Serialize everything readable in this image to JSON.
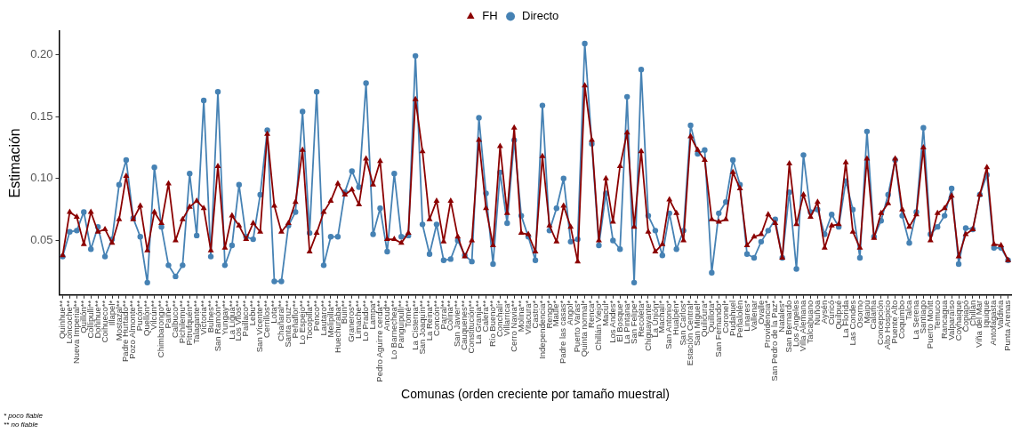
{
  "chart_data": {
    "type": "line",
    "xlabel": "Comunas (orden creciente por tamaño muestral)",
    "ylabel": "Estimación",
    "categories": [
      "Quinhue**",
      "Loncoche**",
      "Nueva Imperial**",
      "Quillón**",
      "Collipulli**",
      "Doñihue**",
      "Coihueco**",
      "Illapel*",
      "Mostazal**",
      "Padre Hurtado**",
      "Pozo Almonte**",
      "Pucón**",
      "Quellón**",
      "Vilcún**",
      "Chimbarongo**",
      "Paine**",
      "Calbuco**",
      "Pichilemu**",
      "Pitrufquén**",
      "Talagante**",
      "Victoria**",
      "Bulnes**",
      "San Ramón**",
      "Yungay**",
      "La Ligua**",
      "Los Vilos**",
      "Paillaco**",
      "Lebu**",
      "San Vicente**",
      "Cerrillos**",
      "Lota**",
      "Chañaral**",
      "Santa cruz**",
      "Peñaflor**",
      "Lo Espejo**",
      "Tocopilla**",
      "Penco**",
      "Lautaro**",
      "Melipilla**",
      "Huechuraba**",
      "Buin**",
      "Graneros**",
      "Limache**",
      "Lo Prado**",
      "Lampa*",
      "Pedro Aguirre cerda**",
      "Ancud**",
      "Lo Barnechea**",
      "Panguipulli**",
      "Tomé**",
      "La Cisterna**",
      "San Joaquín**",
      "La Reina**",
      "Concón**",
      "Parral**",
      "Colina**",
      "San Javier**",
      "Cauquenes**",
      "Constitución**",
      "La Granja**",
      "Calera**",
      "Río Bueno**",
      "Conchalí*",
      "Villarrica*",
      "Cerro Navia**",
      "Molina**",
      "Vitacura*",
      "Castro*",
      "Independencia*",
      "Rengo*",
      "Maule*",
      "Padre las casas*",
      "Angol*",
      "Puerto Varas*",
      "Quinta normal*",
      "Renca*",
      "Chillán Viejo*",
      "Macul*",
      "Los Andes*",
      "El Bosque*",
      "La Pintana*",
      "San Felipe*",
      "Recoleta*",
      "Chiguayante*",
      "La Unión*",
      "Machalí*",
      "San Antonio*",
      "Hualpén*",
      "San Carlos*",
      "Estación Central*",
      "San Miguel*",
      "Quilicura*",
      "Quillota*",
      "San Fernando*",
      "Coronel*",
      "Pudahuel",
      "Peñalolén",
      "Linares*",
      "Vallenar",
      "Ovalle",
      "Providencia*",
      "San Pedro de la Paz*",
      "Natales*",
      "San Bernardo",
      "Los Ángeles",
      "Villa Alemana",
      "Talcahuano",
      "Ñuñoa",
      "Aysén",
      "Curicó",
      "Quilpué",
      "La Florida",
      "Las Condes",
      "Osorno",
      "Maipú",
      "Calama",
      "Concepción",
      "Alto Hospicio",
      "Puente Alto",
      "Coquimbo",
      "Talca",
      "La Serena",
      "Santiago",
      "Puerto Montt",
      "Temuco",
      "Rancagua",
      "Valparaíso",
      "Coyhaique",
      "Copiapó",
      "Chillán",
      "Viña del Mar",
      "Iquique",
      "Antofagasta",
      "Valdivia",
      "Punta Arenas"
    ],
    "series": [
      {
        "name": "Directo",
        "color": "#4682b4",
        "marker": "circle",
        "values": [
          0.037,
          0.057,
          0.058,
          0.073,
          0.043,
          0.061,
          0.037,
          0.051,
          0.095,
          0.115,
          0.068,
          0.053,
          0.016,
          0.109,
          0.061,
          0.03,
          0.021,
          0.03,
          0.104,
          0.054,
          0.163,
          0.037,
          0.17,
          0.03,
          0.046,
          0.095,
          0.053,
          0.051,
          0.087,
          0.139,
          0.017,
          0.017,
          0.062,
          0.073,
          0.154,
          0.056,
          0.17,
          0.03,
          0.053,
          0.053,
          0.089,
          0.106,
          0.093,
          0.177,
          0.055,
          0.076,
          0.041,
          0.104,
          0.053,
          0.054,
          0.199,
          0.063,
          0.039,
          0.063,
          0.034,
          0.035,
          0.05,
          0.038,
          0.033,
          0.149,
          0.088,
          0.031,
          0.105,
          0.064,
          0.131,
          0.07,
          0.053,
          0.034,
          0.159,
          0.058,
          0.076,
          0.1,
          0.049,
          0.051,
          0.209,
          0.128,
          0.046,
          0.088,
          0.05,
          0.043,
          0.166,
          0.016,
          0.188,
          0.07,
          0.058,
          0.038,
          0.072,
          0.043,
          0.058,
          0.143,
          0.12,
          0.123,
          0.024,
          0.072,
          0.081,
          0.115,
          0.095,
          0.039,
          0.036,
          0.049,
          0.058,
          0.067,
          0.036,
          0.089,
          0.027,
          0.119,
          0.073,
          0.075,
          0.055,
          0.071,
          0.061,
          0.098,
          0.075,
          0.036,
          0.138,
          0.053,
          0.066,
          0.087,
          0.115,
          0.07,
          0.048,
          0.073,
          0.141,
          0.055,
          0.061,
          0.07,
          0.092,
          0.031,
          0.06,
          0.059,
          0.087,
          0.103,
          0.044,
          0.044,
          0.034
        ]
      },
      {
        "name": "FH",
        "color": "#8b0000",
        "marker": "triangle",
        "values": [
          0.038,
          0.073,
          0.069,
          0.047,
          0.073,
          0.057,
          0.059,
          0.048,
          0.067,
          0.102,
          0.067,
          0.078,
          0.042,
          0.073,
          0.064,
          0.096,
          0.05,
          0.067,
          0.077,
          0.082,
          0.076,
          0.042,
          0.11,
          0.044,
          0.07,
          0.062,
          0.051,
          0.064,
          0.057,
          0.136,
          0.078,
          0.057,
          0.064,
          0.081,
          0.123,
          0.041,
          0.056,
          0.073,
          0.082,
          0.096,
          0.087,
          0.091,
          0.079,
          0.116,
          0.095,
          0.114,
          0.051,
          0.051,
          0.048,
          0.056,
          0.164,
          0.122,
          0.067,
          0.082,
          0.049,
          0.082,
          0.053,
          0.037,
          0.05,
          0.131,
          0.076,
          0.046,
          0.126,
          0.072,
          0.141,
          0.056,
          0.055,
          0.041,
          0.118,
          0.062,
          0.049,
          0.078,
          0.061,
          0.033,
          0.175,
          0.131,
          0.05,
          0.1,
          0.065,
          0.11,
          0.137,
          0.061,
          0.122,
          0.057,
          0.041,
          0.047,
          0.083,
          0.072,
          0.05,
          0.134,
          0.123,
          0.115,
          0.067,
          0.065,
          0.067,
          0.105,
          0.092,
          0.046,
          0.053,
          0.055,
          0.071,
          0.064,
          0.036,
          0.112,
          0.063,
          0.087,
          0.069,
          0.081,
          0.044,
          0.062,
          0.063,
          0.113,
          0.057,
          0.044,
          0.116,
          0.052,
          0.072,
          0.08,
          0.116,
          0.075,
          0.061,
          0.071,
          0.125,
          0.05,
          0.072,
          0.076,
          0.086,
          0.037,
          0.055,
          0.059,
          0.087,
          0.109,
          0.047,
          0.046,
          0.034
        ]
      }
    ],
    "ylim": [
      0.006,
      0.219
    ],
    "yticks": [
      {
        "value": 0.05,
        "label": "0.05"
      },
      {
        "value": 0.1,
        "label": "0.10"
      },
      {
        "value": 0.15,
        "label": "0.15"
      },
      {
        "value": 0.2,
        "label": "0.20"
      }
    ],
    "grid": false,
    "legend": "top",
    "line_style": "solid",
    "annotations": [
      "* poco fiable",
      "** no fiable"
    ]
  }
}
